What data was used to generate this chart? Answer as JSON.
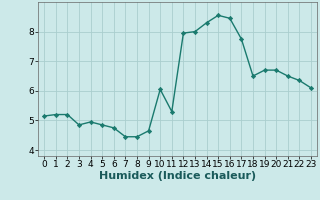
{
  "x": [
    0,
    1,
    2,
    3,
    4,
    5,
    6,
    7,
    8,
    9,
    10,
    11,
    12,
    13,
    14,
    15,
    16,
    17,
    18,
    19,
    20,
    21,
    22,
    23
  ],
  "y": [
    5.15,
    5.2,
    5.2,
    4.85,
    4.95,
    4.85,
    4.75,
    4.45,
    4.45,
    4.65,
    6.05,
    5.3,
    7.95,
    8.0,
    8.3,
    8.55,
    8.45,
    7.75,
    6.5,
    6.7,
    6.7,
    6.5,
    6.35,
    6.1
  ],
  "line_color": "#1a7a6e",
  "marker": "D",
  "marker_size": 2.2,
  "bg_color": "#cce9e9",
  "grid_color": "#aacece",
  "xlabel": "Humidex (Indice chaleur)",
  "xlim": [
    -0.5,
    23.5
  ],
  "ylim": [
    3.8,
    9.0
  ],
  "yticks": [
    4,
    5,
    6,
    7,
    8
  ],
  "xticks": [
    0,
    1,
    2,
    3,
    4,
    5,
    6,
    7,
    8,
    9,
    10,
    11,
    12,
    13,
    14,
    15,
    16,
    17,
    18,
    19,
    20,
    21,
    22,
    23
  ],
  "tick_fontsize": 6.5,
  "xlabel_fontsize": 8,
  "line_width": 1.0
}
